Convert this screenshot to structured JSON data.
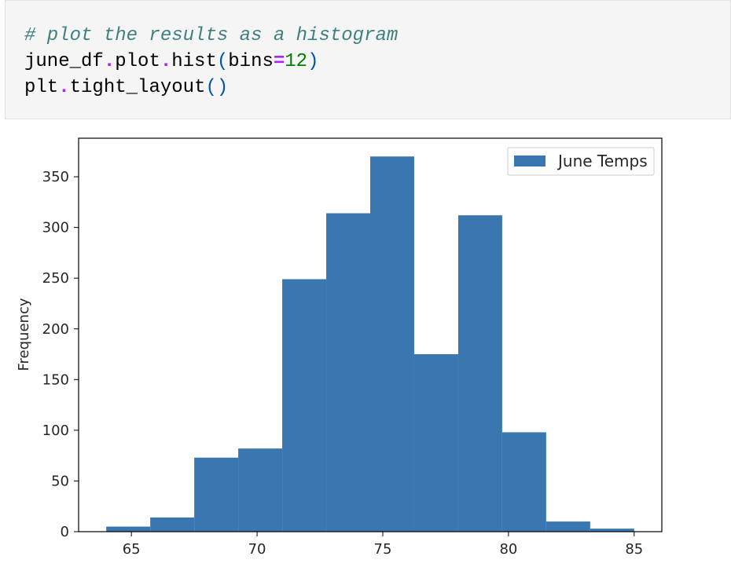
{
  "code_cell": {
    "comment": "# plot the results as a histogram",
    "line2": {
      "obj": "june_df",
      "dot1": ".",
      "attr1": "plot",
      "dot2": ".",
      "method": "hist",
      "open": "(",
      "kwarg": "bins",
      "eq": "=",
      "num": "12",
      "close": ")"
    },
    "line3": {
      "obj": "plt",
      "dot": ".",
      "method": "tight_layout",
      "parens": "()"
    }
  },
  "chart_data": {
    "type": "bar",
    "title": "",
    "xlabel": "",
    "ylabel": "Frequency",
    "xlim": [
      62.9,
      86.1
    ],
    "ylim": [
      0,
      388
    ],
    "bin_edges": [
      64,
      65.75,
      67.5,
      69.25,
      71,
      72.75,
      74.5,
      76.25,
      78,
      79.75,
      81.5,
      83.25,
      85
    ],
    "values": [
      5,
      14,
      73,
      82,
      249,
      314,
      370,
      175,
      312,
      98,
      10,
      3
    ],
    "x_ticks": [
      "65",
      "70",
      "75",
      "80",
      "85"
    ],
    "y_ticks": [
      "0",
      "50",
      "100",
      "150",
      "200",
      "250",
      "300",
      "350"
    ],
    "series": [
      {
        "name": "June Temps",
        "color": "#3a76af"
      }
    ],
    "legend_position": "top-right",
    "grid": false
  }
}
